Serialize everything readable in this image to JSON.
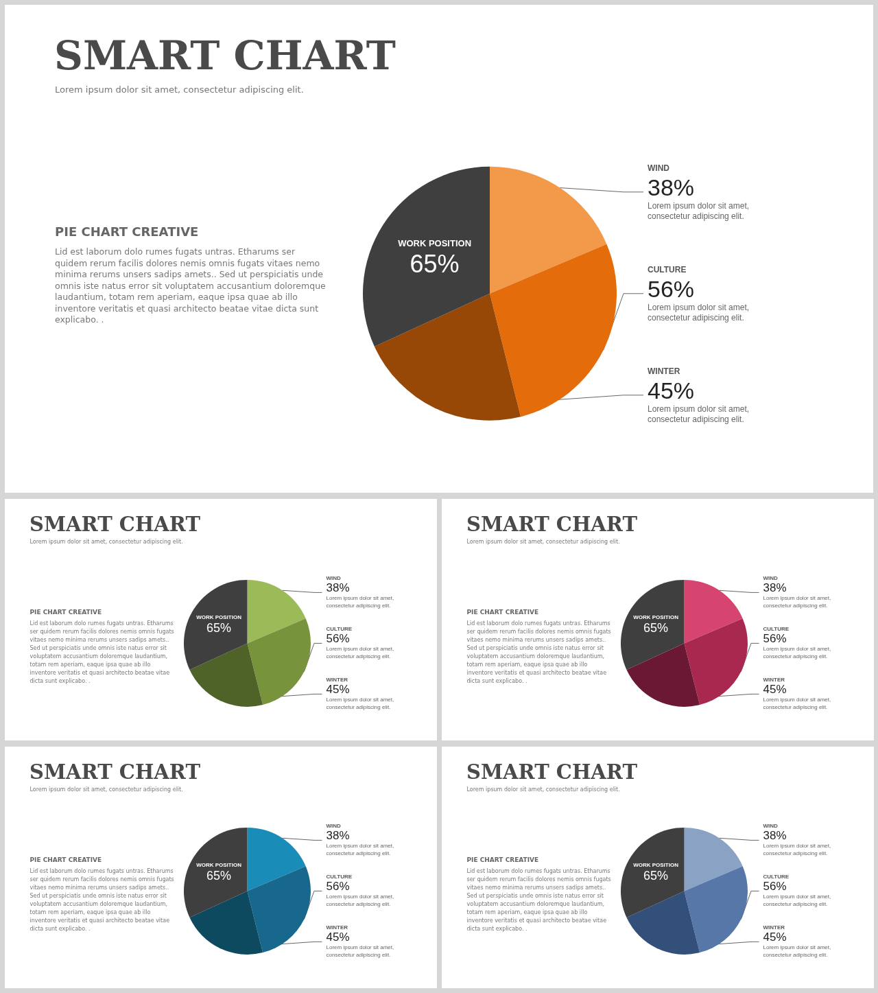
{
  "chart_data": [
    {
      "type": "pie",
      "title": "SMART CHART",
      "subtitle": "Lorem ipsum dolor sit amet, consectetur adipiscing elit.",
      "categories": [
        "WIND",
        "CULTURE",
        "WINTER",
        "WORK POSITION"
      ],
      "values": [
        38,
        56,
        45,
        65
      ],
      "colors": [
        "#f2994a",
        "#e46c0a",
        "#974806",
        "#3f3f3f"
      ],
      "value_labels": [
        "38%",
        "56%",
        "45%",
        "65%"
      ],
      "annotations": [
        "PIE CHART CREATIVE",
        "Lid est laborum dolo rumes fugats untras. Etharums ser quidem rerum facilis dolores nemis omnis fugats vitaes nemo minima rerums unsers sadips amets.. Sed ut perspiciatis unde omnis iste natus error sit voluptatem accusantium doloremque laudantium, totam rem aperiam, eaque ipsa quae ab illo inventore veritatis et quasi architecto beatae vitae dicta sunt explicabo. .",
        "Lorem ipsum dolor sit amet, consectetur adipiscing elit.",
        "Lorem ipsum dolor sit amet, consectetur adipiscing elit.",
        "Lorem ipsum dolor sit amet, consectetur adipiscing elit."
      ]
    },
    {
      "type": "pie",
      "title": "SMART CHART",
      "subtitle": "Lorem ipsum dolor sit amet, consectetur adipiscing elit.",
      "categories": [
        "WIND",
        "CULTURE",
        "WINTER",
        "WORK POSITION"
      ],
      "values": [
        38,
        56,
        45,
        65
      ],
      "colors": [
        "#9bbb59",
        "#77933c",
        "#4f6228",
        "#3f3f3f"
      ],
      "value_labels": [
        "38%",
        "56%",
        "45%",
        "65%"
      ],
      "annotations": [
        "PIE CHART CREATIVE",
        "Lid est laborum dolo rumes fugats untras. Etharums ser quidem rerum facilis dolores nemis omnis fugats vitaes nemo minima rerums unsers sadips amets.. Sed ut perspiciatis unde omnis iste natus error sit voluptatem accusantium doloremque laudantium, totam rem aperiam, eaque ipsa quae ab illo inventore veritatis et quasi architecto beatae vitae dicta sunt explicabo. .",
        "Lorem ipsum dolor sit amet, consectetur adipiscing elit.",
        "Lorem ipsum dolor sit amet, consectetur adipiscing elit.",
        "Lorem ipsum dolor sit amet, consectetur adipiscing elit."
      ]
    },
    {
      "type": "pie",
      "title": "SMART CHART",
      "subtitle": "Lorem ipsum dolor sit amet, consectetur adipiscing elit.",
      "categories": [
        "WIND",
        "CULTURE",
        "WINTER",
        "WORK POSITION"
      ],
      "values": [
        38,
        56,
        45,
        65
      ],
      "colors": [
        "#d6456f",
        "#a8284f",
        "#6b1834",
        "#3f3f3f"
      ],
      "value_labels": [
        "38%",
        "56%",
        "45%",
        "65%"
      ],
      "annotations": [
        "PIE CHART CREATIVE",
        "Lid est laborum dolo rumes fugats untras. Etharums ser quidem rerum facilis dolores nemis omnis fugats vitaes nemo minima rerums unsers sadips amets.. Sed ut perspiciatis unde omnis iste natus error sit voluptatem accusantium doloremque laudantium, totam rem aperiam, eaque ipsa quae ab illo inventore veritatis et quasi architecto beatae vitae dicta sunt explicabo. .",
        "Lorem ipsum dolor sit amet, consectetur adipiscing elit.",
        "Lorem ipsum dolor sit amet, consectetur adipiscing elit.",
        "Lorem ipsum dolor sit amet, consectetur adipiscing elit."
      ]
    },
    {
      "type": "pie",
      "title": "SMART CHART",
      "subtitle": "Lorem ipsum dolor sit amet, consectetur adipiscing elit.",
      "categories": [
        "WIND",
        "CULTURE",
        "WINTER",
        "WORK POSITION"
      ],
      "values": [
        38,
        56,
        45,
        65
      ],
      "colors": [
        "#1a8cb8",
        "#17688c",
        "#0d4a60",
        "#3f3f3f"
      ],
      "value_labels": [
        "38%",
        "56%",
        "45%",
        "65%"
      ],
      "annotations": [
        "PIE CHART CREATIVE",
        "Lid est laborum dolo rumes fugats untras. Etharums ser quidem rerum facilis dolores nemis omnis fugats vitaes nemo minima rerums unsers sadips amets.. Sed ut perspiciatis unde omnis iste natus error sit voluptatem accusantium doloremque laudantium, totam rem aperiam, eaque ipsa quae ab illo inventore veritatis et quasi architecto beatae vitae dicta sunt explicabo. .",
        "Lorem ipsum dolor sit amet, consectetur adipiscing elit.",
        "Lorem ipsum dolor sit amet, consectetur adipiscing elit.",
        "Lorem ipsum dolor sit amet, consectetur adipiscing elit."
      ]
    },
    {
      "type": "pie",
      "title": "SMART CHART",
      "subtitle": "Lorem ipsum dolor sit amet, consectetur adipiscing elit.",
      "categories": [
        "WIND",
        "CULTURE",
        "WINTER",
        "WORK POSITION"
      ],
      "values": [
        38,
        56,
        45,
        65
      ],
      "colors": [
        "#8aa3c4",
        "#5677a8",
        "#33507a",
        "#3f3f3f"
      ],
      "value_labels": [
        "38%",
        "56%",
        "45%",
        "65%"
      ],
      "annotations": [
        "PIE CHART CREATIVE",
        "Lid est laborum dolo rumes fugats untras. Etharums ser quidem rerum facilis dolores nemis omnis fugats vitaes nemo minima rerums unsers sadips amets.. Sed ut perspiciatis unde omnis iste natus error sit voluptatem accusantium doloremque laudantium, totam rem aperiam, eaque ipsa quae ab illo inventore veritatis et quasi architecto beatae vitae dicta sunt explicabo. .",
        "Lorem ipsum dolor sit amet, consectetur adipiscing elit.",
        "Lorem ipsum dolor sit amet, consectetur adipiscing elit.",
        "Lorem ipsum dolor sit amet, consectetur adipiscing elit."
      ]
    }
  ]
}
